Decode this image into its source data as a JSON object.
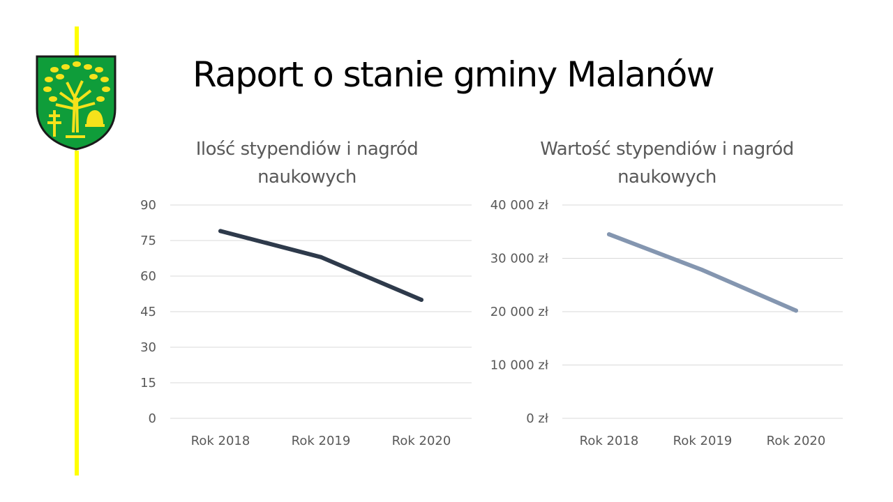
{
  "title": "Raport o stanie gminy Malanów",
  "colors": {
    "accent": "#ffff00",
    "series1": "#2e3a4b",
    "series2": "#8496b0",
    "grid": "#d9d9d9",
    "text": "#595959"
  },
  "chart_data": [
    {
      "type": "line",
      "title_lines": [
        "Ilość stypendiów i nagród",
        "naukowych"
      ],
      "categories": [
        "Rok 2018",
        "Rok 2019",
        "Rok 2020"
      ],
      "values": [
        79,
        68,
        50
      ],
      "ylim": [
        0,
        90
      ],
      "yticks": [
        "0",
        "15",
        "30",
        "45",
        "60",
        "75",
        "90"
      ],
      "xlabel": "",
      "ylabel": "",
      "grid": true
    },
    {
      "type": "line",
      "title_lines": [
        "Wartość stypendiów i nagród",
        "naukowych"
      ],
      "categories": [
        "Rok 2018",
        "Rok 2019",
        "Rok 2020"
      ],
      "values": [
        34500,
        27800,
        20200
      ],
      "ylim": [
        0,
        40000
      ],
      "yticks": [
        "0 zł",
        "10 000 zł",
        "20 000 zł",
        "30 000 zł",
        "40 000 zł"
      ],
      "xlabel": "",
      "ylabel": "",
      "grid": true
    }
  ]
}
